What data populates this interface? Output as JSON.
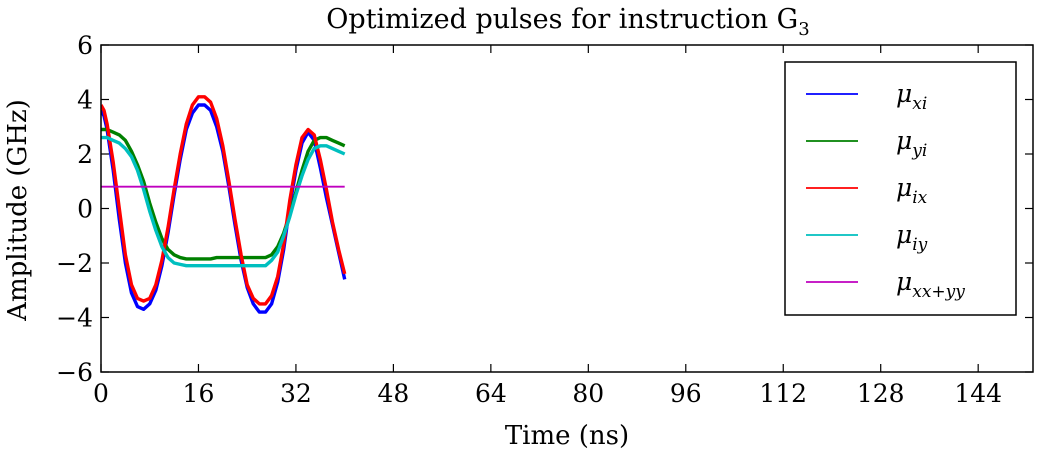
{
  "chart_data": {
    "type": "line",
    "title": "Optimized pulses for instruction G",
    "title_subscript": "3",
    "xlabel": "Time (ns)",
    "ylabel": "Amplitude (GHz)",
    "xlim": [
      0,
      153
    ],
    "ylim": [
      -6,
      6
    ],
    "xticks": [
      0,
      16,
      32,
      48,
      64,
      80,
      96,
      112,
      128,
      144
    ],
    "yticks": [
      -6,
      -4,
      -2,
      0,
      2,
      4,
      6
    ],
    "ytick_labels": [
      "−6",
      "−4",
      "−2",
      "0",
      "2",
      "4",
      "6"
    ],
    "grid": false,
    "legend_position": "top-right",
    "series": [
      {
        "name": "μ",
        "sub": "xi",
        "color": "#0000ff",
        "x": [
          0,
          0.5,
          1,
          2,
          3,
          4,
          5,
          6,
          7,
          8,
          9,
          10,
          11,
          12,
          13,
          14,
          15,
          16,
          17,
          18,
          19,
          20,
          21,
          22,
          23,
          24,
          25,
          26,
          27,
          28,
          29,
          30,
          31,
          32,
          33,
          34,
          35,
          36,
          37,
          38,
          39,
          40
        ],
        "y": [
          3.6,
          3.4,
          2.9,
          1.4,
          -0.4,
          -2.0,
          -3.1,
          -3.6,
          -3.7,
          -3.5,
          -3.0,
          -2.1,
          -0.9,
          0.5,
          1.8,
          2.9,
          3.5,
          3.8,
          3.8,
          3.6,
          3.0,
          2.1,
          0.8,
          -0.6,
          -1.9,
          -2.9,
          -3.5,
          -3.8,
          -3.8,
          -3.5,
          -2.7,
          -1.5,
          0.1,
          1.4,
          2.4,
          2.8,
          2.5,
          1.5,
          0.4,
          -0.6,
          -1.6,
          -2.6
        ]
      },
      {
        "name": "μ",
        "sub": "yi",
        "color": "#008000",
        "x": [
          0,
          1,
          2,
          3,
          4,
          5,
          6,
          7,
          8,
          9,
          10,
          11,
          12,
          13,
          14,
          15,
          16,
          17,
          18,
          19,
          20,
          21,
          22,
          23,
          24,
          25,
          26,
          27,
          28,
          29,
          30,
          31,
          32,
          33,
          34,
          35,
          36,
          37,
          38,
          39,
          40
        ],
        "y": [
          2.9,
          2.9,
          2.8,
          2.7,
          2.5,
          2.1,
          1.6,
          1.0,
          0.2,
          -0.5,
          -1.1,
          -1.5,
          -1.7,
          -1.8,
          -1.85,
          -1.85,
          -1.85,
          -1.85,
          -1.85,
          -1.8,
          -1.8,
          -1.8,
          -1.8,
          -1.8,
          -1.8,
          -1.8,
          -1.8,
          -1.8,
          -1.7,
          -1.4,
          -0.9,
          -0.2,
          0.6,
          1.4,
          2.1,
          2.5,
          2.6,
          2.6,
          2.5,
          2.4,
          2.3
        ]
      },
      {
        "name": "μ",
        "sub": "ix",
        "color": "#ff0000",
        "x": [
          0,
          0.5,
          1,
          2,
          3,
          4,
          5,
          6,
          7,
          8,
          9,
          10,
          11,
          12,
          13,
          14,
          15,
          16,
          17,
          18,
          19,
          20,
          21,
          22,
          23,
          24,
          25,
          26,
          27,
          28,
          29,
          30,
          31,
          32,
          33,
          34,
          35,
          36,
          37,
          38,
          39,
          40
        ],
        "y": [
          3.8,
          3.6,
          3.1,
          1.7,
          0.0,
          -1.7,
          -2.8,
          -3.3,
          -3.4,
          -3.3,
          -2.8,
          -1.9,
          -0.7,
          0.7,
          2.0,
          3.1,
          3.8,
          4.1,
          4.1,
          3.9,
          3.3,
          2.3,
          1.0,
          -0.4,
          -1.7,
          -2.8,
          -3.3,
          -3.5,
          -3.5,
          -3.2,
          -2.5,
          -1.3,
          0.3,
          1.6,
          2.6,
          2.9,
          2.7,
          1.8,
          0.7,
          -0.5,
          -1.5,
          -2.4
        ]
      },
      {
        "name": "μ",
        "sub": "iy",
        "color": "#00bfbf",
        "x": [
          0,
          1,
          2,
          3,
          4,
          5,
          6,
          7,
          8,
          9,
          10,
          11,
          12,
          13,
          14,
          15,
          16,
          17,
          18,
          19,
          20,
          21,
          22,
          23,
          24,
          25,
          26,
          27,
          28,
          29,
          30,
          31,
          32,
          33,
          34,
          35,
          36,
          37,
          38,
          39,
          40
        ],
        "y": [
          2.6,
          2.6,
          2.5,
          2.4,
          2.2,
          1.9,
          1.4,
          0.7,
          -0.1,
          -0.8,
          -1.4,
          -1.8,
          -2.0,
          -2.05,
          -2.1,
          -2.1,
          -2.1,
          -2.1,
          -2.1,
          -2.1,
          -2.1,
          -2.1,
          -2.1,
          -2.1,
          -2.1,
          -2.1,
          -2.1,
          -2.1,
          -1.9,
          -1.6,
          -1.0,
          -0.3,
          0.5,
          1.2,
          1.8,
          2.2,
          2.3,
          2.3,
          2.2,
          2.1,
          2.0
        ]
      },
      {
        "name": "μ",
        "sub": "xx+yy",
        "color": "#bf00bf",
        "x": [
          0,
          40
        ],
        "y": [
          0.8,
          0.8
        ]
      }
    ]
  }
}
